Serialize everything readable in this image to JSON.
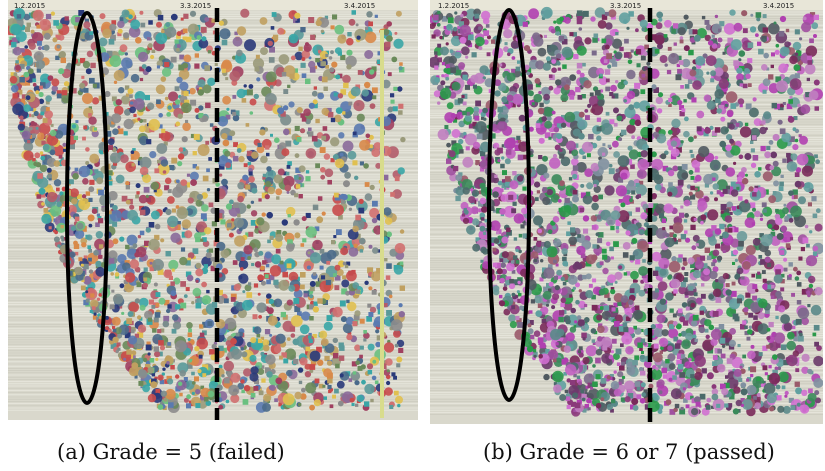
{
  "panels": [
    {
      "caption": "(a) Grade = 5 (failed)",
      "date_labels": [
        "1.2.2015",
        "3.3.2015",
        "3.4.2015"
      ],
      "palette": [
        "#b35c6a",
        "#7a8c8c",
        "#5a9a9a",
        "#d88a4a",
        "#8a6a9a",
        "#6a8a5a",
        "#c0a060",
        "#4a6a8a",
        "#d07070",
        "#9a9a7a",
        "#3aa6a6",
        "#e0c050",
        "#6ac080",
        "#a04060",
        "#8c8c8c",
        "#2a3a7a",
        "#c84b4b",
        "#5a7ab0"
      ]
    },
    {
      "caption": "(b) Grade = 6 or 7 (passed)",
      "date_labels": [
        "1.2.2015",
        "3.3.2015",
        "3.4.2015"
      ],
      "palette": [
        "#8a3a7a",
        "#a050a0",
        "#c060c0",
        "#6a3a6a",
        "#b040b0",
        "#7a6a8a",
        "#5a8a8a",
        "#6a9a9a",
        "#4a6a6a",
        "#8090a0",
        "#3a8a5a",
        "#2a9a4a",
        "#9a5a6a",
        "#d070d0",
        "#505a60",
        "#7a2a5a",
        "#60a0a0",
        "#c080c0"
      ]
    }
  ]
}
